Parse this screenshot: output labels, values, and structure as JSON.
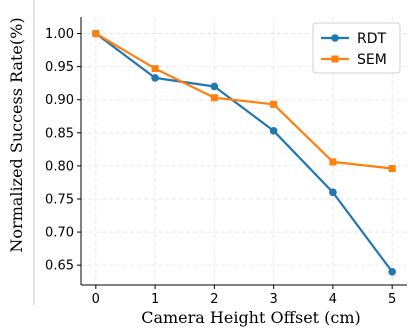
{
  "chart_data": {
    "type": "line",
    "title": "",
    "xlabel": "Camera Height Offset (cm)",
    "ylabel": "Normalized Success Rate(%)",
    "x": [
      0,
      1,
      2,
      3,
      4,
      5
    ],
    "xlim": [
      -0.25,
      5.25
    ],
    "ylim": [
      0.62,
      1.025
    ],
    "xticks": [
      "0",
      "1",
      "2",
      "3",
      "4",
      "5"
    ],
    "yticks": [
      "0.65",
      "0.70",
      "0.75",
      "0.80",
      "0.85",
      "0.90",
      "0.95",
      "1.00"
    ],
    "grid": true,
    "legend_position": "top-right",
    "series": [
      {
        "name": "RDT",
        "color": "#1f77b4",
        "marker": "circle",
        "values": [
          1.0,
          0.933,
          0.92,
          0.853,
          0.76,
          0.64
        ]
      },
      {
        "name": "SEM",
        "color": "#ff7f0e",
        "marker": "square",
        "values": [
          1.0,
          0.947,
          0.903,
          0.893,
          0.806,
          0.796
        ]
      }
    ]
  }
}
